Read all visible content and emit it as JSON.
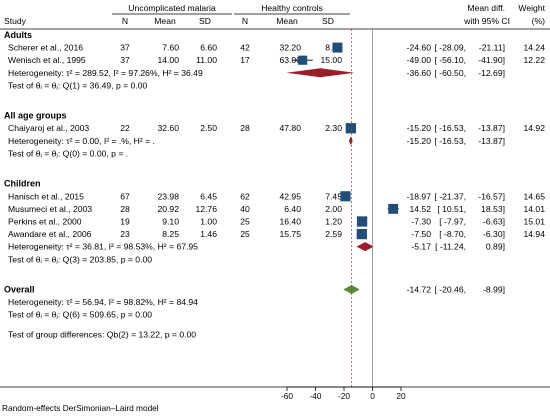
{
  "chart_data": {
    "type": "forest",
    "columns": {
      "study": "Study",
      "group1": "Uncomplicated malaria",
      "group2": "Healthy controls",
      "n": "N",
      "mean": "Mean",
      "sd": "SD",
      "effect": "Mean diff.",
      "effect_ci": "with 95% CI",
      "weight": "Weight",
      "weight_unit": "(%)"
    },
    "groups": [
      {
        "name": "Adults",
        "studies": [
          {
            "label": "Scherer et al., 2016",
            "n1": "37",
            "m1": "7.60",
            "sd1": "6.60",
            "n2": "42",
            "m2": "32.20",
            "sd2": "8.90",
            "es": -24.6,
            "lo": -28.09,
            "hi": -21.11,
            "ci_text": "-24.60 [ -28.09, -21.11]",
            "weight": 14.24,
            "weight_text": "14.24"
          },
          {
            "label": "Wenisch et al., 1995",
            "n1": "37",
            "m1": "14.00",
            "sd1": "11.00",
            "n2": "17",
            "m2": "63.00",
            "sd2": "15.00",
            "es": -49.0,
            "lo": -56.1,
            "hi": -41.9,
            "ci_text": "-49.00 [ -56.10, -41.90]",
            "weight": 12.22,
            "weight_text": "12.22"
          }
        ],
        "summary": {
          "es": -36.6,
          "lo": -60.5,
          "hi": -12.69,
          "ci_text": "-36.60 [ -60.50, -12.69]"
        },
        "heterogeneity": "Heterogeneity: τ² = 289.52, I² = 97.26%, H² = 36.49",
        "test": "Test of θᵢ = θⱼ: Q(1) = 36.49, p = 0.00"
      },
      {
        "name": "All age groups",
        "studies": [
          {
            "label": "Chaiyaroj et al., 2003",
            "n1": "22",
            "m1": "32.60",
            "sd1": "2.50",
            "n2": "28",
            "m2": "47.80",
            "sd2": "2.30",
            "es": -15.2,
            "lo": -16.53,
            "hi": -13.87,
            "ci_text": "-15.20 [ -16.53, -13.87]",
            "weight": 14.92,
            "weight_text": "14.92"
          }
        ],
        "summary": {
          "es": -15.2,
          "lo": -16.53,
          "hi": -13.87,
          "ci_text": "-15.20 [ -16.53, -13.87]"
        },
        "heterogeneity": "Heterogeneity: τ² = 0.00, I² = .%, H² = .",
        "test": "Test of θᵢ = θⱼ: Q(0) = 0.00, p = ."
      },
      {
        "name": "Children",
        "studies": [
          {
            "label": "Hanisch et al., 2015",
            "n1": "67",
            "m1": "23.98",
            "sd1": "6.45",
            "n2": "62",
            "m2": "42.95",
            "sd2": "7.45",
            "es": -18.97,
            "lo": -21.37,
            "hi": -16.57,
            "ci_text": "-18.97 [ -21.37, -16.57]",
            "weight": 14.65,
            "weight_text": "14.65"
          },
          {
            "label": "Musumeci et al., 2003",
            "n1": "28",
            "m1": "20.92",
            "sd1": "12.76",
            "n2": "40",
            "m2": "6.40",
            "sd2": "2.00",
            "es": 14.52,
            "lo": 10.51,
            "hi": 18.53,
            "ci_text": "14.52 [ 10.51, 18.53]",
            "weight": 14.01,
            "weight_text": "14.01"
          },
          {
            "label": "Perkins et al., 2000",
            "n1": "19",
            "m1": "9.10",
            "sd1": "1.00",
            "n2": "25",
            "m2": "16.40",
            "sd2": "1.20",
            "es": -7.3,
            "lo": -7.97,
            "hi": -6.63,
            "ci_text": "-7.30 [ -7.97, -6.63]",
            "weight": 15.01,
            "weight_text": "15.01"
          },
          {
            "label": "Awandare et al., 2006",
            "n1": "23",
            "m1": "8.25",
            "sd1": "1.46",
            "n2": "25",
            "m2": "15.75",
            "sd2": "2.59",
            "es": -7.5,
            "lo": -8.7,
            "hi": -6.3,
            "ci_text": "-7.50 [ -8.70, -6.30]",
            "weight": 14.94,
            "weight_text": "14.94"
          }
        ],
        "summary": {
          "es": -5.17,
          "lo": -11.24,
          "hi": 0.89,
          "ci_text": "-5.17 [ -11.24, 0.89]"
        },
        "heterogeneity": "Heterogeneity: τ² = 36.81, I² = 98.53%, H² = 67.95",
        "test": "Test of θᵢ = θⱼ: Q(3) = 203.85, p = 0.00"
      }
    ],
    "overall": {
      "label": "Overall",
      "es": -14.72,
      "lo": -20.46,
      "hi": -8.99,
      "ci_text": "-14.72 [ -20.46, -8.99]",
      "heterogeneity": "Heterogeneity: τ² = 56.94, I² = 98.82%, H² = 84.94",
      "test": "Test of θᵢ = θⱼ: Q(6) = 509.65, p = 0.00"
    },
    "group_test": "Test of group differences: Qb(2) = 13.22, p = 0.00",
    "footnote": "Random-effects DerSimonian–Laird model",
    "x_axis": {
      "ticks": [
        -60,
        -40,
        -20,
        0,
        20
      ],
      "range": [
        -60,
        20
      ]
    },
    "colors": {
      "marker": "#1f4e79",
      "subgroup_diamond": "#9b1d2a",
      "overall_diamond": "#5a8a3a"
    }
  }
}
